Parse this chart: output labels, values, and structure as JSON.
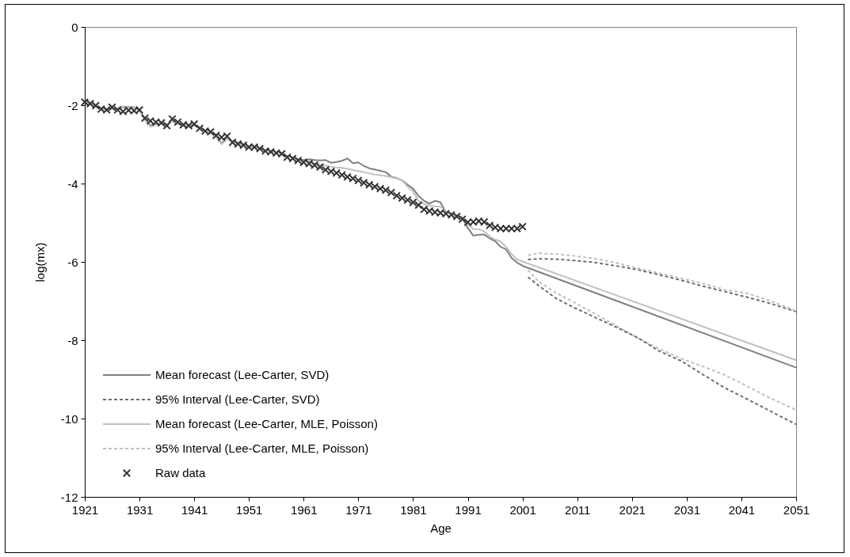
{
  "chart_data": {
    "type": "line",
    "xlabel": "Age",
    "ylabel": "log(mx)",
    "xlim": [
      1921,
      2051
    ],
    "xticks": [
      1921,
      1931,
      1941,
      1951,
      1961,
      1971,
      1981,
      1991,
      2001,
      2011,
      2021,
      2031,
      2041,
      2051
    ],
    "ylim": [
      -12,
      0
    ],
    "yticks": [
      -12,
      -10,
      -8,
      -6,
      -4,
      -2,
      0
    ],
    "grid": false,
    "legend": "bottom left",
    "series": [
      {
        "name": "Mean forecast (Lee-Carter, SVD)",
        "line_style": "solid",
        "color": "#808080",
        "x": [
          1921,
          1922,
          1923,
          1924,
          1925,
          1926,
          1927,
          1928,
          1929,
          1930,
          1931,
          1932,
          1933,
          1934,
          1935,
          1936,
          1937,
          1938,
          1939,
          1940,
          1941,
          1942,
          1943,
          1944,
          1945,
          1946,
          1947,
          1948,
          1949,
          1950,
          1951,
          1952,
          1953,
          1954,
          1955,
          1956,
          1957,
          1958,
          1959,
          1960,
          1961,
          1962,
          1963,
          1964,
          1965,
          1966,
          1967,
          1968,
          1969,
          1970,
          1971,
          1972,
          1973,
          1974,
          1975,
          1976,
          1977,
          1978,
          1979,
          1980,
          1981,
          1982,
          1983,
          1984,
          1985,
          1986,
          1987,
          1988,
          1989,
          1990,
          1991,
          1992,
          1993,
          1994,
          1995,
          1996,
          1997,
          1998,
          1999,
          2000,
          2001,
          2051
        ],
        "values": [
          -1.92,
          -1.97,
          -2.02,
          -2.08,
          -2.1,
          -2.08,
          -2.1,
          -2.05,
          -2.05,
          -2.05,
          -2.12,
          -2.35,
          -2.52,
          -2.47,
          -2.45,
          -2.5,
          -2.4,
          -2.48,
          -2.5,
          -2.52,
          -2.5,
          -2.58,
          -2.65,
          -2.68,
          -2.8,
          -2.98,
          -2.82,
          -2.92,
          -2.97,
          -3.0,
          -3.05,
          -3.07,
          -3.1,
          -3.15,
          -3.17,
          -3.2,
          -3.22,
          -3.3,
          -3.33,
          -3.38,
          -3.4,
          -3.38,
          -3.4,
          -3.41,
          -3.4,
          -3.47,
          -3.45,
          -3.42,
          -3.36,
          -3.48,
          -3.46,
          -3.55,
          -3.61,
          -3.64,
          -3.67,
          -3.71,
          -3.82,
          -3.86,
          -3.92,
          -4.03,
          -4.13,
          -4.32,
          -4.44,
          -4.51,
          -4.44,
          -4.48,
          -4.73,
          -4.76,
          -4.81,
          -4.86,
          -5.13,
          -5.33,
          -5.31,
          -5.3,
          -5.4,
          -5.47,
          -5.62,
          -5.68,
          -5.9,
          -6.02,
          -6.1,
          -8.7
        ]
      },
      {
        "name": "95% Interval (Lee-Carter, SVD)",
        "line_style": "dashed",
        "color": "#6e6e6e",
        "x": [
          2002,
          2004,
          2007,
          2010,
          2014,
          2018,
          2022,
          2026,
          2030,
          2034,
          2038,
          2042,
          2046,
          2051
        ],
        "values": [
          -5.94,
          -5.92,
          -5.93,
          -5.96,
          -6.01,
          -6.1,
          -6.2,
          -6.33,
          -6.47,
          -6.62,
          -6.76,
          -6.9,
          -7.05,
          -7.27
        ]
      },
      {
        "name": "Mean forecast (Lee-Carter, MLE, Poisson)",
        "line_style": "solid",
        "color": "#c0c0c0",
        "x": [
          1921,
          1922,
          1923,
          1924,
          1925,
          1926,
          1927,
          1928,
          1929,
          1930,
          1931,
          1932,
          1933,
          1934,
          1935,
          1936,
          1937,
          1938,
          1939,
          1940,
          1941,
          1942,
          1943,
          1944,
          1945,
          1946,
          1947,
          1948,
          1949,
          1950,
          1951,
          1952,
          1953,
          1954,
          1955,
          1956,
          1957,
          1958,
          1959,
          1960,
          1961,
          1962,
          1963,
          1964,
          1965,
          1966,
          1967,
          1968,
          1969,
          1970,
          1971,
          1972,
          1973,
          1974,
          1975,
          1976,
          1977,
          1978,
          1979,
          1980,
          1981,
          1982,
          1983,
          1984,
          1985,
          1986,
          1987,
          1988,
          1989,
          1990,
          1991,
          1992,
          1993,
          1994,
          1995,
          1996,
          1997,
          1998,
          1999,
          2000,
          2001,
          2051
        ],
        "values": [
          -1.93,
          -1.98,
          -2.03,
          -2.1,
          -2.12,
          -2.08,
          -2.08,
          -2.03,
          -2.03,
          -2.05,
          -2.15,
          -2.38,
          -2.55,
          -2.5,
          -2.45,
          -2.48,
          -2.42,
          -2.48,
          -2.52,
          -2.52,
          -2.52,
          -2.6,
          -2.66,
          -2.7,
          -2.82,
          -3.0,
          -2.85,
          -2.93,
          -2.98,
          -3.02,
          -3.06,
          -3.08,
          -3.12,
          -3.16,
          -3.19,
          -3.21,
          -3.24,
          -3.31,
          -3.35,
          -3.4,
          -3.42,
          -3.44,
          -3.48,
          -3.51,
          -3.54,
          -3.57,
          -3.59,
          -3.6,
          -3.62,
          -3.65,
          -3.68,
          -3.71,
          -3.74,
          -3.77,
          -3.79,
          -3.81,
          -3.84,
          -3.87,
          -3.92,
          -4.08,
          -4.2,
          -4.44,
          -4.52,
          -4.56,
          -4.58,
          -4.59,
          -4.7,
          -4.79,
          -4.84,
          -4.88,
          -5.03,
          -5.16,
          -5.17,
          -5.22,
          -5.35,
          -5.43,
          -5.48,
          -5.62,
          -5.8,
          -5.94,
          -5.99,
          -8.51
        ]
      },
      {
        "name": "95% Interval (Lee-Carter, MLE, Poisson)",
        "line_style": "dashed",
        "color": "#c0c0c0",
        "x": [
          2002,
          2004,
          2007,
          2010,
          2014,
          2018,
          2022,
          2026,
          2030,
          2034,
          2038,
          2042,
          2046,
          2051
        ],
        "values": [
          -5.83,
          -5.78,
          -5.8,
          -5.84,
          -5.91,
          -6.02,
          -6.16,
          -6.29,
          -6.42,
          -6.55,
          -6.71,
          -6.8,
          -6.98,
          -7.25
        ]
      },
      {
        "line_style": "dashed",
        "color": "#c0c0c0",
        "x": [
          2002,
          2004,
          2007,
          2010,
          2014,
          2018,
          2022,
          2026,
          2030,
          2034,
          2038,
          2042,
          2046,
          2051
        ],
        "values": [
          -6.21,
          -6.51,
          -6.78,
          -7.0,
          -7.31,
          -7.62,
          -7.94,
          -8.22,
          -8.47,
          -8.67,
          -8.89,
          -9.17,
          -9.46,
          -9.78
        ]
      },
      {
        "line_style": "dashed",
        "color": "#6e6e6e",
        "x": [
          2002,
          2004,
          2007,
          2010,
          2014,
          2018,
          2022,
          2026,
          2030,
          2034,
          2038,
          2042,
          2046,
          2051
        ],
        "values": [
          -6.39,
          -6.61,
          -6.92,
          -7.14,
          -7.4,
          -7.66,
          -7.93,
          -8.28,
          -8.53,
          -8.88,
          -9.22,
          -9.5,
          -9.79,
          -10.15
        ]
      },
      {
        "name": "Raw data",
        "type": "scatter",
        "marker": "cross",
        "color": "#333333",
        "x": [
          1921,
          1922,
          1923,
          1924,
          1925,
          1926,
          1927,
          1928,
          1929,
          1930,
          1931,
          1932,
          1933,
          1934,
          1935,
          1936,
          1937,
          1938,
          1939,
          1940,
          1941,
          1942,
          1943,
          1944,
          1945,
          1946,
          1947,
          1948,
          1949,
          1950,
          1951,
          1952,
          1953,
          1954,
          1955,
          1956,
          1957,
          1958,
          1959,
          1960,
          1961,
          1962,
          1963,
          1964,
          1965,
          1966,
          1967,
          1968,
          1969,
          1970,
          1971,
          1972,
          1973,
          1974,
          1975,
          1976,
          1977,
          1978,
          1979,
          1980,
          1981,
          1982,
          1983,
          1984,
          1985,
          1986,
          1987,
          1988,
          1989,
          1990,
          1991,
          1992,
          1993,
          1994,
          1995,
          1996,
          1997,
          1998,
          1999,
          2000,
          2001
        ],
        "values": [
          -1.92,
          -1.96,
          -2.01,
          -2.1,
          -2.12,
          -2.05,
          -2.12,
          -2.16,
          -2.13,
          -2.14,
          -2.12,
          -2.33,
          -2.4,
          -2.43,
          -2.45,
          -2.52,
          -2.35,
          -2.43,
          -2.5,
          -2.52,
          -2.48,
          -2.59,
          -2.66,
          -2.68,
          -2.77,
          -2.82,
          -2.79,
          -2.95,
          -2.99,
          -3.02,
          -3.07,
          -3.07,
          -3.11,
          -3.17,
          -3.19,
          -3.22,
          -3.24,
          -3.33,
          -3.36,
          -3.41,
          -3.46,
          -3.49,
          -3.53,
          -3.58,
          -3.65,
          -3.69,
          -3.73,
          -3.78,
          -3.83,
          -3.87,
          -3.92,
          -3.98,
          -4.03,
          -4.08,
          -4.13,
          -4.17,
          -4.23,
          -4.31,
          -4.37,
          -4.42,
          -4.48,
          -4.55,
          -4.66,
          -4.7,
          -4.73,
          -4.75,
          -4.77,
          -4.8,
          -4.84,
          -4.91,
          -4.99,
          -4.98,
          -4.96,
          -4.98,
          -5.07,
          -5.12,
          -5.15,
          -5.15,
          -5.15,
          -5.15,
          -5.1
        ]
      }
    ]
  }
}
